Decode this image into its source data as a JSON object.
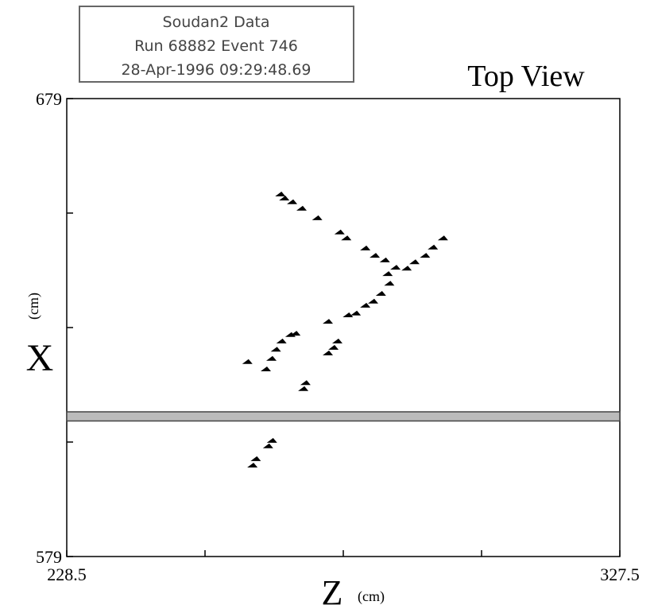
{
  "chart_data": {
    "type": "scatter",
    "info": [
      "Soudan2 Data",
      "Run 68882 Event 746",
      "28-Apr-1996 09:29:48.69"
    ],
    "title": "Top View",
    "xlabel": "Z",
    "xunit": "(cm)",
    "ylabel": "X",
    "yunit": "(cm)",
    "xlim": [
      228.5,
      327.5
    ],
    "ylim": [
      579,
      679
    ],
    "xticks": [
      228.5,
      {
        "value": 253.25,
        "label": null
      },
      {
        "value": 278,
        "label": null
      },
      {
        "value": 302.75,
        "label": null
      },
      327.5
    ],
    "yticks": [
      579,
      {
        "value": 604,
        "label": null
      },
      {
        "value": 629,
        "label": null
      },
      {
        "value": 654,
        "label": null
      },
      679
    ],
    "gap": [
      608.6,
      610.6
    ],
    "color": "#000000",
    "x": [
      266.8,
      267.5,
      268.9,
      270.6,
      273.4,
      277.4,
      278.6,
      282.0,
      283.7,
      285.5,
      287.4,
      289.4,
      290.8,
      292.7,
      294.1,
      295.9,
      286.0,
      286.3,
      284.8,
      283.4,
      282.0,
      280.3,
      278.9,
      275.3,
      269.5,
      268.6,
      277.0,
      276.3,
      275.3,
      267.0,
      266.0,
      265.2,
      260.9,
      264.2,
      271.3,
      270.9,
      265.3,
      264.6,
      262.4,
      261.8
    ],
    "values": [
      658.0,
      657.1,
      656.3,
      654.9,
      652.8,
      649.7,
      648.4,
      646.2,
      644.6,
      643.6,
      642.0,
      641.8,
      643.2,
      644.6,
      646.4,
      648.4,
      640.6,
      638.5,
      636.3,
      634.6,
      633.7,
      632.0,
      631.6,
      630.2,
      627.6,
      627.3,
      625.9,
      624.5,
      623.3,
      625.9,
      624.1,
      622.1,
      621.4,
      619.8,
      616.8,
      615.5,
      604.2,
      603.0,
      600.2,
      598.8
    ]
  }
}
